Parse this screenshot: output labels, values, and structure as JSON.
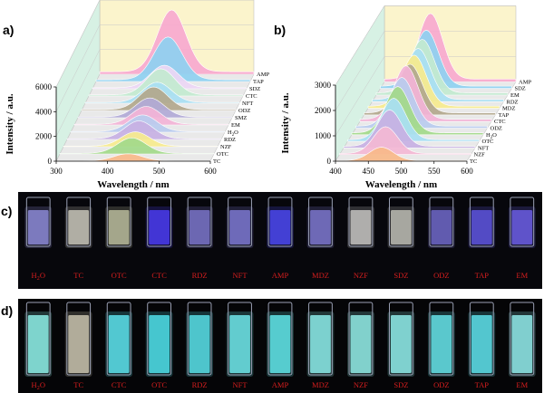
{
  "chart_data": [
    {
      "panel": "a)",
      "type": "line",
      "style": "3d-waterfall",
      "xlabel": "Wavelength / nm",
      "ylabel": "Intensity / a.u.",
      "xlim": [
        300,
        600
      ],
      "ylim": [
        0,
        6000
      ],
      "xticks": [
        "300",
        "400",
        "500",
        "600"
      ],
      "yticks": [
        "0",
        "2000",
        "4000",
        "6000"
      ],
      "series": [
        {
          "name": "TC",
          "color": "#f7b98a",
          "peak_x": 440,
          "peak_y": 600
        },
        {
          "name": "OTC",
          "color": "#a3d98a",
          "peak_x": 440,
          "peak_y": 1300
        },
        {
          "name": "NZF",
          "color": "#f6eb8e",
          "peak_x": 440,
          "peak_y": 1200
        },
        {
          "name": "RDZ",
          "color": "#c7b0e3",
          "peak_x": 440,
          "peak_y": 1500
        },
        {
          "name": "H2O",
          "color": "#b9cbee",
          "peak_x": 440,
          "peak_y": 1400
        },
        {
          "name": "EM",
          "color": "#f2b4d6",
          "peak_x": 440,
          "peak_y": 1500
        },
        {
          "name": "SMZ",
          "color": "#b2aad6",
          "peak_x": 440,
          "peak_y": 1600
        },
        {
          "name": "ODZ",
          "color": "#b3a88d",
          "peak_x": 440,
          "peak_y": 1900
        },
        {
          "name": "NFT",
          "color": "#a9dff2",
          "peak_x": 440,
          "peak_y": 1700
        },
        {
          "name": "CTC",
          "color": "#c3ead0",
          "peak_x": 440,
          "peak_y": 2200
        },
        {
          "name": "SDZ",
          "color": "#ecd6f4",
          "peak_x": 440,
          "peak_y": 1900
        },
        {
          "name": "TAP",
          "color": "#8fd1f0",
          "peak_x": 440,
          "peak_y": 3600
        },
        {
          "name": "AMP",
          "color": "#f7a9cf",
          "peak_x": 440,
          "peak_y": 5200
        }
      ]
    },
    {
      "panel": "b)",
      "type": "line",
      "style": "3d-waterfall",
      "xlabel": "Wavelength / nm",
      "ylabel": "Intensity / a.u.",
      "xlim": [
        400,
        600
      ],
      "ylim": [
        0,
        3000
      ],
      "xticks": [
        "400",
        "450",
        "500",
        "550",
        "600"
      ],
      "yticks": [
        "0",
        "1000",
        "2000",
        "3000"
      ],
      "series": [
        {
          "name": "TC",
          "color": "#f7b98a",
          "peak_x": 470,
          "peak_y": 550
        },
        {
          "name": "NZF",
          "color": "#f3b8d4",
          "peak_x": 470,
          "peak_y": 1100
        },
        {
          "name": "NFT",
          "color": "#c7b0e3",
          "peak_x": 470,
          "peak_y": 1500
        },
        {
          "name": "OTC",
          "color": "#a9dff2",
          "peak_x": 470,
          "peak_y": 1700
        },
        {
          "name": "H2O",
          "color": "#a3d98a",
          "peak_x": 470,
          "peak_y": 1900
        },
        {
          "name": "ODZ",
          "color": "#b9cbee",
          "peak_x": 470,
          "peak_y": 2000
        },
        {
          "name": "CTC",
          "color": "#f2b4d6",
          "peak_x": 470,
          "peak_y": 2200
        },
        {
          "name": "TAP",
          "color": "#b3a88d",
          "peak_x": 470,
          "peak_y": 2000
        },
        {
          "name": "MDZ",
          "color": "#f6eb8e",
          "peak_x": 470,
          "peak_y": 2100
        },
        {
          "name": "RDZ",
          "color": "#a9dff2",
          "peak_x": 470,
          "peak_y": 2100
        },
        {
          "name": "EM",
          "color": "#c3ead0",
          "peak_x": 470,
          "peak_y": 2200
        },
        {
          "name": "SDZ",
          "color": "#8fd1f0",
          "peak_x": 470,
          "peak_y": 2300
        },
        {
          "name": "AMP",
          "color": "#f7a9cf",
          "peak_x": 470,
          "peak_y": 2700
        }
      ]
    }
  ],
  "photos": {
    "c": {
      "panel": "c)",
      "labels": [
        "H2O",
        "TC",
        "OTC",
        "CTC",
        "RDZ",
        "NFT",
        "AMP",
        "MDZ",
        "NZF",
        "SDZ",
        "ODZ",
        "TAP",
        "EM"
      ],
      "glow": [
        "#8c89d6",
        "#c7c4b8",
        "#b9bb9c",
        "#4a3cf0",
        "#7a74c8",
        "#7c78d0",
        "#4b48ee",
        "#7c77cc",
        "#c5c4c2",
        "#bcbcb4",
        "#6d66c6",
        "#5e55de",
        "#6b5ee4"
      ]
    },
    "d": {
      "panel": "d)",
      "labels": [
        "H2O",
        "TC",
        "CTC",
        "OTC",
        "RDZ",
        "NFT",
        "AMP",
        "MDZ",
        "NZF",
        "SDZ",
        "ODZ",
        "TAP",
        "EM"
      ],
      "glow": [
        "#8ef0e8",
        "#c8c2ae",
        "#5de2ec",
        "#4fe0ea",
        "#58dfe6",
        "#6ee6ea",
        "#62e6ea",
        "#8cecea",
        "#92ece6",
        "#8fecea",
        "#66e2e8",
        "#5ee0ea",
        "#90eaea"
      ]
    }
  }
}
